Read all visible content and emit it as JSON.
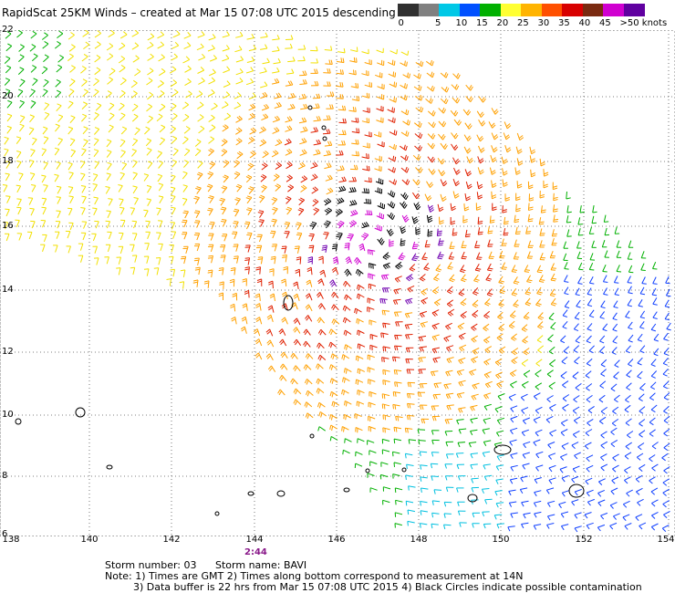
{
  "title": "RapidScat 25KM Winds – created at Mar 15 07:08 UTC 2015 descending",
  "scale": {
    "labels": [
      "0",
      "5",
      "10",
      "15",
      "20",
      "25",
      "30",
      "35",
      "40",
      "45",
      ">50 knots"
    ],
    "colors": [
      "#303030",
      "#808080",
      "#00c8e6",
      "#0050ff",
      "#00b000",
      "#ffff33",
      "#ffb400",
      "#ff5000",
      "#d80000",
      "#7a2a10",
      "#d000d0",
      "#6000a0"
    ]
  },
  "map": {
    "x_ticks": [
      "138",
      "140",
      "142",
      "144",
      "146",
      "148",
      "150",
      "152",
      "154"
    ],
    "y_ticks": [
      "22",
      "20",
      "18",
      "16",
      "14",
      "12",
      "10",
      "8",
      "6"
    ],
    "time_label": "2:44"
  },
  "footer": {
    "storm_number": "Storm number: 03",
    "storm_name": "Storm name: BAVI",
    "note1": "Note: 1) Times are GMT  2) Times along bottom correspond to measurement at 14N",
    "note2": "3) Data buffer is 22 hrs from Mar 15 07:08 UTC 2015  4) Black Circles indicate possible contamination"
  }
}
